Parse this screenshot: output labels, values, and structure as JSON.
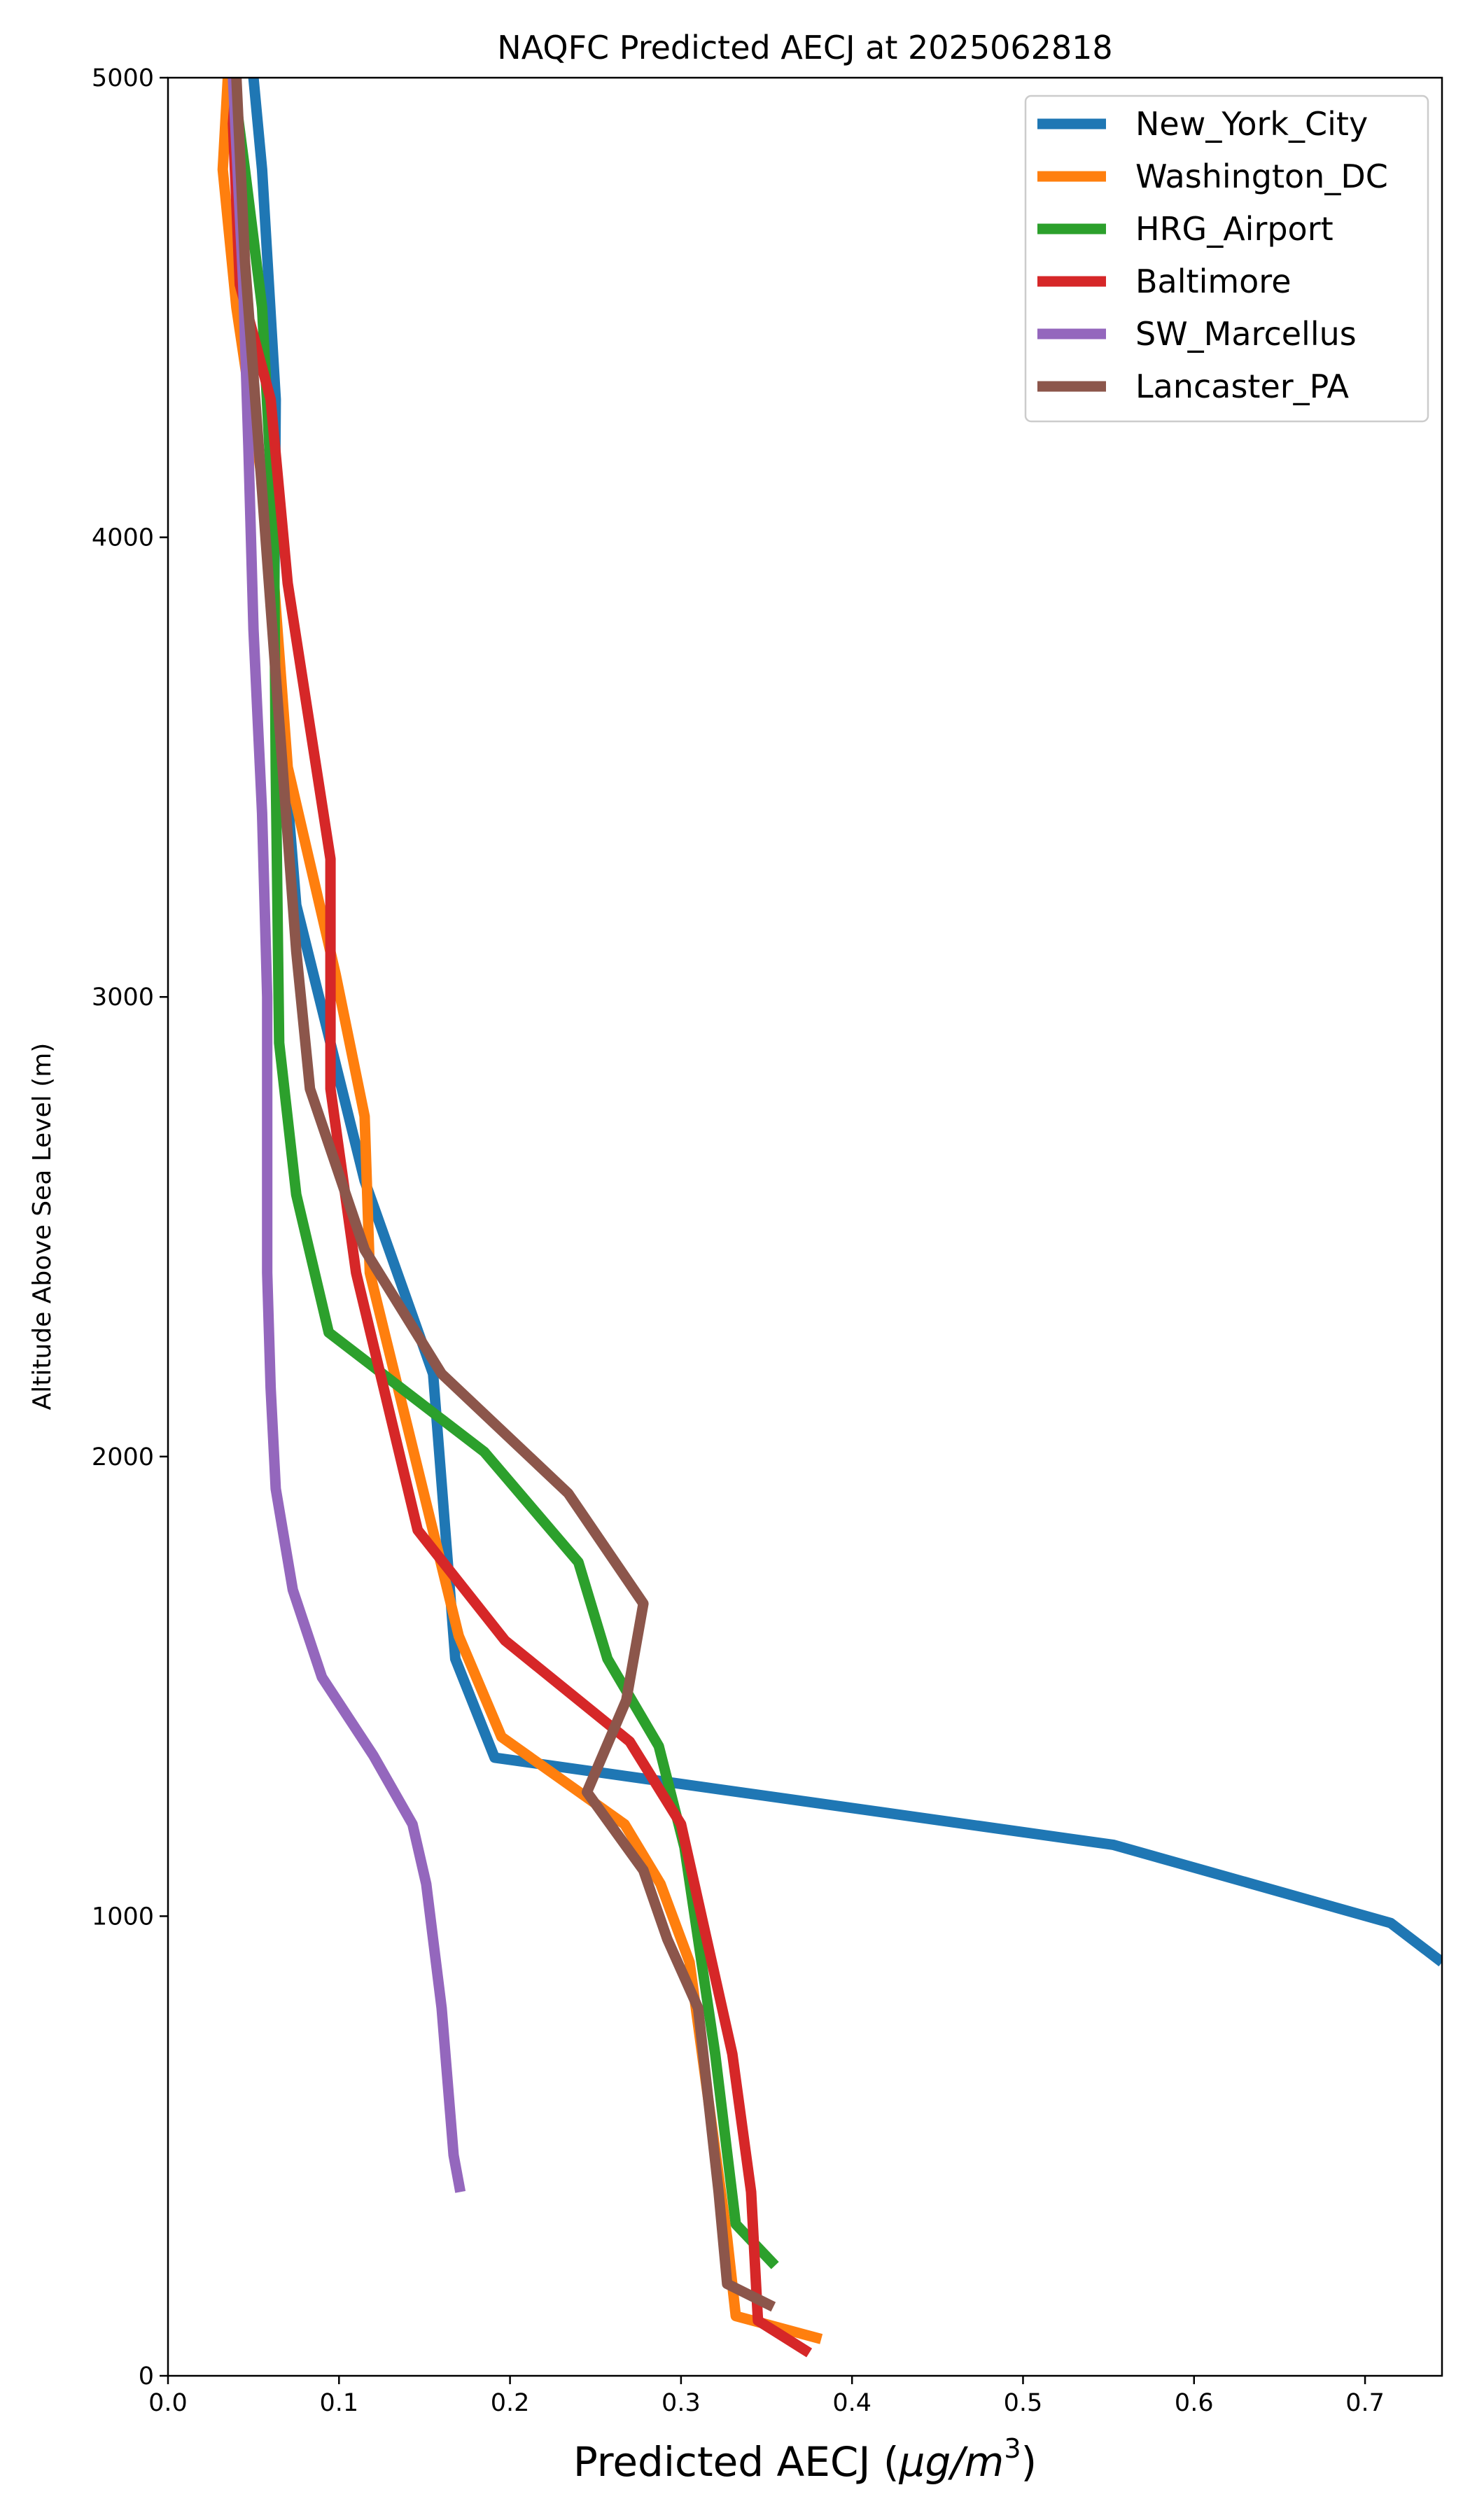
{
  "chart_data": {
    "type": "line",
    "title": "NAQFC Predicted AECJ at 2025062818",
    "xlabel": "Predicted AECJ (",
    "xlabel_unit": "μg/m",
    "xlabel_sup": "3",
    "xlabel_close": ")",
    "ylabel": "Altitude Above Sea Level (m)",
    "xlim": [
      0.0,
      0.745
    ],
    "ylim": [
      0,
      5000
    ],
    "x_ticks": [
      0.0,
      0.1,
      0.2,
      0.3,
      0.4,
      0.5,
      0.6,
      0.7
    ],
    "x_tick_labels": [
      "0.0",
      "0.1",
      "0.2",
      "0.3",
      "0.4",
      "0.5",
      "0.6",
      "0.7"
    ],
    "y_ticks": [
      0,
      1000,
      2000,
      3000,
      4000,
      5000
    ],
    "y_tick_labels": [
      "0",
      "1000",
      "2000",
      "3000",
      "4000",
      "5000"
    ],
    "grid": false,
    "legend_position": "top-right",
    "series": [
      {
        "name": "New_York_City",
        "color": "#1f77b4",
        "points": [
          [
            0.745,
            900
          ],
          [
            0.715,
            985
          ],
          [
            0.553,
            1155
          ],
          [
            0.191,
            1345
          ],
          [
            0.168,
            1560
          ],
          [
            0.155,
            2180
          ],
          [
            0.115,
            2600
          ],
          [
            0.075,
            3200
          ],
          [
            0.062,
            3800
          ],
          [
            0.063,
            4300
          ],
          [
            0.055,
            4800
          ],
          [
            0.05,
            5000
          ]
        ]
      },
      {
        "name": "Washington_DC",
        "color": "#ff7f0e",
        "points": [
          [
            0.382,
            80
          ],
          [
            0.332,
            130
          ],
          [
            0.327,
            300
          ],
          [
            0.305,
            900
          ],
          [
            0.288,
            1070
          ],
          [
            0.267,
            1200
          ],
          [
            0.195,
            1390
          ],
          [
            0.17,
            1610
          ],
          [
            0.118,
            2400
          ],
          [
            0.115,
            2740
          ],
          [
            0.098,
            3050
          ],
          [
            0.07,
            3500
          ],
          [
            0.06,
            4000
          ],
          [
            0.04,
            4500
          ],
          [
            0.032,
            4800
          ],
          [
            0.035,
            5000
          ]
        ]
      },
      {
        "name": "HRG_Airport",
        "color": "#2ca02c",
        "points": [
          [
            0.355,
            240
          ],
          [
            0.332,
            330
          ],
          [
            0.32,
            700
          ],
          [
            0.302,
            1150
          ],
          [
            0.287,
            1370
          ],
          [
            0.257,
            1560
          ],
          [
            0.24,
            1770
          ],
          [
            0.185,
            2010
          ],
          [
            0.094,
            2270
          ],
          [
            0.075,
            2570
          ],
          [
            0.065,
            2900
          ],
          [
            0.063,
            3500
          ],
          [
            0.062,
            4000
          ],
          [
            0.055,
            4500
          ],
          [
            0.045,
            4800
          ],
          [
            0.038,
            5000
          ]
        ]
      },
      {
        "name": "Baltimore",
        "color": "#d62728",
        "points": [
          [
            0.375,
            50
          ],
          [
            0.345,
            120
          ],
          [
            0.341,
            400
          ],
          [
            0.33,
            700
          ],
          [
            0.3,
            1200
          ],
          [
            0.27,
            1380
          ],
          [
            0.197,
            1600
          ],
          [
            0.146,
            1840
          ],
          [
            0.11,
            2400
          ],
          [
            0.095,
            2800
          ],
          [
            0.095,
            3300
          ],
          [
            0.07,
            3900
          ],
          [
            0.06,
            4300
          ],
          [
            0.042,
            4550
          ],
          [
            0.038,
            4900
          ],
          [
            0.04,
            5000
          ]
        ]
      },
      {
        "name": "SW_Marcellus",
        "color": "#9467bd",
        "points": [
          [
            0.171,
            400
          ],
          [
            0.167,
            480
          ],
          [
            0.16,
            800
          ],
          [
            0.151,
            1070
          ],
          [
            0.143,
            1200
          ],
          [
            0.12,
            1350
          ],
          [
            0.09,
            1520
          ],
          [
            0.073,
            1710
          ],
          [
            0.063,
            1930
          ],
          [
            0.06,
            2150
          ],
          [
            0.058,
            2400
          ],
          [
            0.058,
            3000
          ],
          [
            0.055,
            3400
          ],
          [
            0.05,
            3800
          ],
          [
            0.047,
            4200
          ],
          [
            0.044,
            4550
          ],
          [
            0.04,
            4850
          ],
          [
            0.038,
            5000
          ]
        ]
      },
      {
        "name": "Lancaster_PA",
        "color": "#8c564b",
        "points": [
          [
            0.354,
            150
          ],
          [
            0.327,
            200
          ],
          [
            0.322,
            400
          ],
          [
            0.31,
            800
          ],
          [
            0.292,
            950
          ],
          [
            0.278,
            1100
          ],
          [
            0.245,
            1270
          ],
          [
            0.268,
            1470
          ],
          [
            0.278,
            1680
          ],
          [
            0.234,
            1920
          ],
          [
            0.16,
            2180
          ],
          [
            0.115,
            2450
          ],
          [
            0.083,
            2800
          ],
          [
            0.075,
            3100
          ],
          [
            0.065,
            3600
          ],
          [
            0.055,
            4100
          ],
          [
            0.045,
            4600
          ],
          [
            0.04,
            5000
          ]
        ]
      }
    ]
  }
}
